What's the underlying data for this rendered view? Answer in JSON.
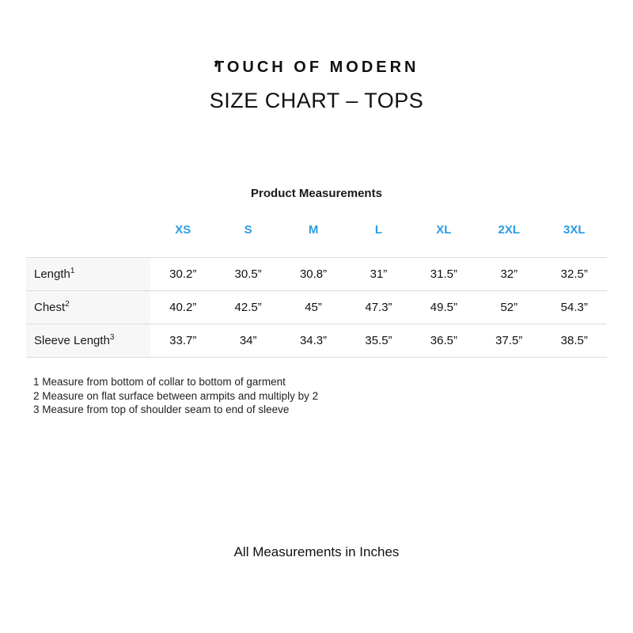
{
  "brand": {
    "logo_text": "TOUCH OF MODERN"
  },
  "page": {
    "title": "SIZE CHART – TOPS",
    "subtitle": "Product Measurements",
    "footer": "All Measurements in Inches"
  },
  "colors": {
    "accent_blue": "#2B9CE2",
    "row_border": "#dcdcdc",
    "label_bg": "#f7f7f7"
  },
  "table": {
    "sizes": [
      "XS",
      "S",
      "M",
      "L",
      "XL",
      "2XL",
      "3XL"
    ],
    "rows": [
      {
        "label": "Length",
        "sup": "1",
        "values": [
          "30.2”",
          "30.5”",
          "30.8”",
          "31”",
          "31.5”",
          "32”",
          "32.5”"
        ]
      },
      {
        "label": "Chest",
        "sup": "2",
        "values": [
          "40.2”",
          "42.5”",
          "45”",
          "47.3”",
          "49.5”",
          "52”",
          "54.3”"
        ]
      },
      {
        "label": "Sleeve Length",
        "sup": "3",
        "values": [
          "33.7”",
          "34”",
          "34.3”",
          "35.5”",
          "36.5”",
          "37.5”",
          "38.5”"
        ]
      }
    ]
  },
  "footnotes": [
    "1 Measure from bottom of collar to bottom of garment",
    "2 Measure on flat surface between armpits and multiply by 2",
    "3 Measure from top of shoulder seam to end of sleeve"
  ]
}
